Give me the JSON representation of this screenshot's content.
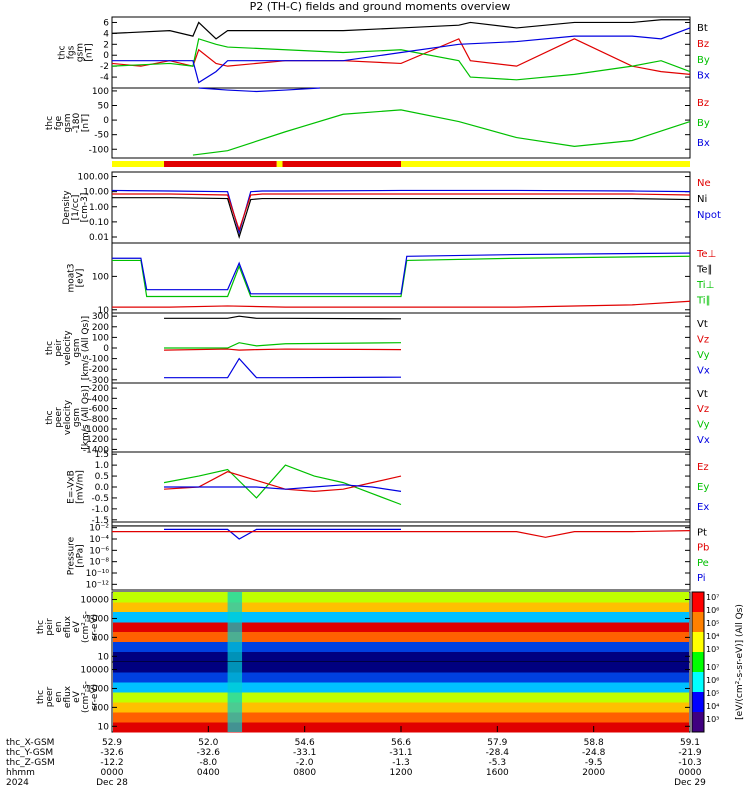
{
  "title": "P2 (TH-C) fields and ground moments overview",
  "colors": {
    "black": "#000000",
    "red": "#e00000",
    "green": "#00c000",
    "blue": "#0000e0",
    "yellow": "#ffff00",
    "barred": "#e00000"
  },
  "chart_data": [
    {
      "id": "fgs",
      "type": "line",
      "ylabel_lines": [
        "thc",
        "fgs",
        "gsm",
        "[nT]"
      ],
      "ylim": [
        -6,
        7
      ],
      "yticks": [
        {
          "v": 6,
          "l": "6"
        },
        {
          "v": 4,
          "l": "4"
        },
        {
          "v": 2,
          "l": "2"
        },
        {
          "v": 0,
          "l": "0"
        },
        {
          "v": -2,
          "l": "-2"
        },
        {
          "v": -4,
          "l": "-4"
        }
      ],
      "legend": [
        {
          "t": "Bt",
          "c": "black"
        },
        {
          "t": "Bz",
          "c": "red"
        },
        {
          "t": "By",
          "c": "green"
        },
        {
          "t": "Bx",
          "c": "blue"
        }
      ],
      "series": [
        {
          "name": "Bt",
          "color": "black",
          "x": [
            0,
            0.1,
            0.14,
            0.15,
            0.18,
            0.2,
            0.3,
            0.4,
            0.5,
            0.6,
            0.62,
            0.7,
            0.8,
            0.9,
            0.95,
            1
          ],
          "y": [
            4,
            4.5,
            3.5,
            6,
            3,
            4.5,
            4.5,
            4.5,
            5,
            5.5,
            6,
            5,
            6,
            6,
            6.5,
            6.5
          ]
        },
        {
          "name": "Bz",
          "color": "red",
          "x": [
            0,
            0.05,
            0.1,
            0.14,
            0.15,
            0.18,
            0.2,
            0.3,
            0.4,
            0.5,
            0.6,
            0.62,
            0.7,
            0.8,
            0.9,
            0.95,
            1
          ],
          "y": [
            -1.5,
            -2,
            -1,
            -2,
            1,
            -1.5,
            -2,
            -1,
            -1,
            -1.5,
            3,
            -1,
            -2,
            3,
            -2,
            -3,
            -3.5
          ]
        },
        {
          "name": "By",
          "color": "green",
          "x": [
            0,
            0.1,
            0.14,
            0.15,
            0.18,
            0.2,
            0.3,
            0.4,
            0.5,
            0.6,
            0.62,
            0.7,
            0.8,
            0.9,
            0.95,
            1
          ],
          "y": [
            -2,
            -1.5,
            -2,
            3,
            2,
            1.5,
            1,
            0.5,
            1,
            -1,
            -4,
            -4.5,
            -3.5,
            -2,
            -1,
            -3
          ]
        },
        {
          "name": "Bx",
          "color": "blue",
          "x": [
            0,
            0.1,
            0.14,
            0.15,
            0.18,
            0.2,
            0.3,
            0.4,
            0.5,
            0.6,
            0.7,
            0.8,
            0.9,
            0.95,
            1
          ],
          "y": [
            -1,
            -1,
            -1,
            -5,
            -3,
            -1,
            -1,
            -1,
            0.5,
            2,
            2.5,
            3.5,
            3.5,
            3,
            5
          ]
        }
      ]
    },
    {
      "id": "fge",
      "type": "line",
      "ylabel_lines": [
        "thc",
        "fge",
        "gsm",
        "-180",
        "[nT]"
      ],
      "ylim": [
        -130,
        110
      ],
      "yticks": [
        {
          "v": 100,
          "l": "100"
        },
        {
          "v": 50,
          "l": "50"
        },
        {
          "v": 0,
          "l": "0"
        },
        {
          "v": -50,
          "l": "-50"
        },
        {
          "v": -100,
          "l": "-100"
        }
      ],
      "legend": [
        {
          "t": "Bz",
          "c": "red"
        },
        {
          "t": "By",
          "c": "green"
        },
        {
          "t": "Bx",
          "c": "blue"
        }
      ],
      "series": [
        {
          "name": "By",
          "color": "green",
          "x": [
            0.14,
            0.2,
            0.3,
            0.4,
            0.5,
            0.6,
            0.7,
            0.8,
            0.9,
            1
          ],
          "y": [
            -120,
            -105,
            -40,
            20,
            35,
            -5,
            -60,
            -90,
            -70,
            -5
          ]
        },
        {
          "name": "Bx",
          "color": "blue",
          "x": [
            0.15,
            0.2,
            0.25,
            0.3,
            0.36
          ],
          "y": [
            110,
            103,
            98,
            103,
            110
          ]
        }
      ]
    },
    {
      "id": "mode",
      "type": "bar",
      "segments": [
        {
          "x0": 0,
          "x1": 0.09,
          "c": "yellow"
        },
        {
          "x0": 0.09,
          "x1": 0.285,
          "c": "barred"
        },
        {
          "x0": 0.285,
          "x1": 0.295,
          "c": "yellow"
        },
        {
          "x0": 0.295,
          "x1": 0.5,
          "c": "barred"
        },
        {
          "x0": 0.5,
          "x1": 1,
          "c": "yellow"
        }
      ]
    },
    {
      "id": "density",
      "type": "line",
      "log": true,
      "ylabel_lines": [
        "Density",
        "[1/cc]",
        "[cm-3]"
      ],
      "ylim": [
        0.004,
        200
      ],
      "yticks": [
        {
          "v": 100,
          "l": "100.00"
        },
        {
          "v": 10,
          "l": "10.00"
        },
        {
          "v": 1,
          "l": "1.00"
        },
        {
          "v": 0.1,
          "l": "0.10"
        },
        {
          "v": 0.01,
          "l": "0.01"
        }
      ],
      "legend": [
        {
          "t": "Ne",
          "c": "red"
        },
        {
          "t": "Ni",
          "c": "black"
        },
        {
          "t": "Npot",
          "c": "blue"
        },
        {
          "t": "",
          "c": "black"
        }
      ],
      "series": [
        {
          "name": "Npot",
          "color": "blue",
          "x": [
            0,
            0.1,
            0.2,
            0.22,
            0.24,
            0.26,
            0.3,
            0.5,
            0.7,
            0.9,
            1
          ],
          "y": [
            12,
            11,
            10,
            0.02,
            10,
            11,
            11,
            12,
            12,
            11,
            10
          ]
        },
        {
          "name": "Ne",
          "color": "red",
          "x": [
            0,
            0.1,
            0.2,
            0.22,
            0.24,
            0.26,
            0.3,
            0.5,
            0.7,
            0.9,
            1
          ],
          "y": [
            7,
            7,
            6,
            0.03,
            6,
            7,
            7,
            7,
            7,
            7,
            6
          ]
        },
        {
          "name": "Ni",
          "color": "black",
          "x": [
            0,
            0.1,
            0.2,
            0.22,
            0.24,
            0.26,
            0.3,
            0.5,
            0.7,
            0.9,
            1
          ],
          "y": [
            4,
            4,
            3.5,
            0.01,
            3,
            3.5,
            3.5,
            3.5,
            3.5,
            3.5,
            3
          ]
        }
      ]
    },
    {
      "id": "temp",
      "type": "line",
      "log": true,
      "ylabel_lines": [
        "moat3",
        "[eV]"
      ],
      "ylim": [
        8,
        1000
      ],
      "yticks": [
        {
          "v": 100,
          "l": "100"
        },
        {
          "v": 10,
          "l": "10"
        }
      ],
      "legend": [
        {
          "t": "Te⊥",
          "c": "red"
        },
        {
          "t": "Te∥",
          "c": "black"
        },
        {
          "t": "Ti⊥",
          "c": "green"
        },
        {
          "t": "Ti∥",
          "c": "green"
        }
      ],
      "series": [
        {
          "name": "Ti∥",
          "color": "green",
          "x": [
            0,
            0.05,
            0.06,
            0.2,
            0.22,
            0.24,
            0.3,
            0.5,
            0.51,
            0.7,
            1
          ],
          "y": [
            300,
            300,
            25,
            25,
            200,
            25,
            25,
            25,
            300,
            350,
            400
          ]
        },
        {
          "name": "Ti⊥",
          "color": "blue",
          "x": [
            0,
            0.05,
            0.06,
            0.2,
            0.22,
            0.24,
            0.3,
            0.5,
            0.51,
            0.7,
            1
          ],
          "y": [
            350,
            350,
            40,
            40,
            250,
            30,
            30,
            30,
            400,
            450,
            500
          ]
        },
        {
          "name": "Te⊥",
          "color": "red",
          "x": [
            0,
            0.1,
            0.2,
            0.3,
            0.5,
            0.7,
            0.9,
            1
          ],
          "y": [
            12,
            12,
            13,
            12,
            12,
            12,
            14,
            18
          ]
        }
      ]
    },
    {
      "id": "vel1",
      "type": "line",
      "ylabel_lines": [
        "thc",
        "peir",
        "velocity",
        "gsm",
        "[km/s (All Qs)]"
      ],
      "ylim": [
        -330,
        330
      ],
      "yticks": [
        {
          "v": 300,
          "l": "300"
        },
        {
          "v": 200,
          "l": "200"
        },
        {
          "v": 100,
          "l": "100"
        },
        {
          "v": 0,
          "l": "0"
        },
        {
          "v": -100,
          "l": "-100"
        },
        {
          "v": -200,
          "l": "-200"
        },
        {
          "v": -300,
          "l": "-300"
        }
      ],
      "legend": [
        {
          "t": "Vt",
          "c": "black"
        },
        {
          "t": "Vz",
          "c": "red"
        },
        {
          "t": "Vy",
          "c": "green"
        },
        {
          "t": "Vx",
          "c": "blue"
        }
      ],
      "series": [
        {
          "name": "Vt",
          "color": "black",
          "x": [
            0.09,
            0.2,
            0.22,
            0.25,
            0.3,
            0.5
          ],
          "y": [
            280,
            280,
            300,
            280,
            280,
            275
          ]
        },
        {
          "name": "Vx",
          "color": "blue",
          "x": [
            0.09,
            0.2,
            0.22,
            0.25,
            0.3,
            0.5
          ],
          "y": [
            -280,
            -280,
            -100,
            -280,
            -280,
            -275
          ]
        },
        {
          "name": "Vy",
          "color": "green",
          "x": [
            0.09,
            0.2,
            0.22,
            0.25,
            0.3,
            0.5
          ],
          "y": [
            0,
            0,
            50,
            20,
            40,
            50
          ]
        },
        {
          "name": "Vz",
          "color": "red",
          "x": [
            0.09,
            0.2,
            0.22,
            0.25,
            0.3,
            0.5
          ],
          "y": [
            -20,
            -10,
            -20,
            -15,
            -10,
            -15
          ]
        }
      ]
    },
    {
      "id": "vel2",
      "type": "line",
      "ylabel_lines": [
        "thc",
        "peer",
        "velocity",
        "gsm",
        "[km/s (All Qs)]"
      ],
      "ylim": [
        -1450,
        -100
      ],
      "yticks": [
        {
          "v": -200,
          "l": "-200"
        },
        {
          "v": -400,
          "l": "-400"
        },
        {
          "v": -600,
          "l": "-600"
        },
        {
          "v": -800,
          "l": "-800"
        },
        {
          "v": -1000,
          "l": "-1000"
        },
        {
          "v": -1200,
          "l": "-1200"
        },
        {
          "v": -1400,
          "l": "-1400"
        }
      ],
      "legend": [
        {
          "t": "Vt",
          "c": "black"
        },
        {
          "t": "Vz",
          "c": "red"
        },
        {
          "t": "Vy",
          "c": "green"
        },
        {
          "t": "Vx",
          "c": "blue"
        }
      ],
      "series": []
    },
    {
      "id": "efield",
      "type": "line",
      "ylabel_lines": [
        "E=-VxB",
        "[mV/m]"
      ],
      "ylim": [
        -1.6,
        1.6
      ],
      "yticks": [
        {
          "v": 1.5,
          "l": "1.5"
        },
        {
          "v": 1.0,
          "l": "1.0"
        },
        {
          "v": 0.5,
          "l": "0.5"
        },
        {
          "v": 0,
          "l": "0.0"
        },
        {
          "v": -0.5,
          "l": "-0.5"
        },
        {
          "v": -1.0,
          "l": "-1.0"
        },
        {
          "v": -1.5,
          "l": "-1.5"
        }
      ],
      "legend": [
        {
          "t": "Ez",
          "c": "red"
        },
        {
          "t": "Ey",
          "c": "green"
        },
        {
          "t": "Ex",
          "c": "blue"
        }
      ],
      "series": [
        {
          "name": "Ey",
          "color": "green",
          "x": [
            0.09,
            0.15,
            0.2,
            0.25,
            0.3,
            0.35,
            0.4,
            0.45,
            0.5
          ],
          "y": [
            0.2,
            0.5,
            0.8,
            -0.5,
            1,
            0.5,
            0.2,
            -0.3,
            -0.8
          ]
        },
        {
          "name": "Ez",
          "color": "red",
          "x": [
            0.09,
            0.15,
            0.2,
            0.25,
            0.3,
            0.35,
            0.4,
            0.45,
            0.5
          ],
          "y": [
            -0.1,
            0,
            0.7,
            0.3,
            -0.1,
            -0.2,
            -0.1,
            0.2,
            0.5
          ]
        },
        {
          "name": "Ex",
          "color": "blue",
          "x": [
            0.09,
            0.15,
            0.2,
            0.25,
            0.3,
            0.35,
            0.4,
            0.45,
            0.5
          ],
          "y": [
            0,
            0,
            0,
            0,
            -0.1,
            0,
            0.1,
            0,
            -0.2
          ]
        }
      ]
    },
    {
      "id": "pressure",
      "type": "line",
      "log": true,
      "ylabel_lines": [
        "Pressure",
        "[nPa]"
      ],
      "ylim": [
        1e-13,
        0.1
      ],
      "yticks": [
        {
          "v": 0.01,
          "l": "10⁻²"
        },
        {
          "v": 0.0001,
          "l": "10⁻⁴"
        },
        {
          "v": 1e-06,
          "l": "10⁻⁶"
        },
        {
          "v": 1e-08,
          "l": "10⁻⁸"
        },
        {
          "v": 1e-10,
          "l": "10⁻¹⁰"
        },
        {
          "v": 1e-12,
          "l": "10⁻¹²"
        }
      ],
      "legend": [
        {
          "t": "Pt",
          "c": "black"
        },
        {
          "t": "Pb",
          "c": "red"
        },
        {
          "t": "Pe",
          "c": "green"
        },
        {
          "t": "Pi",
          "c": "blue"
        }
      ],
      "series": [
        {
          "name": "Pt",
          "color": "black",
          "x": [
            0,
            0.09,
            0.2,
            0.5,
            1
          ],
          "y": [
            0.02,
            0.02,
            0.02,
            0.02,
            0.02
          ]
        },
        {
          "name": "Pi",
          "color": "blue",
          "x": [
            0.09,
            0.2,
            0.22,
            0.25,
            0.3,
            0.5
          ],
          "y": [
            0.005,
            0.005,
            0.0001,
            0.005,
            0.005,
            0.005
          ]
        },
        {
          "name": "Pb",
          "color": "red",
          "x": [
            0,
            0.2,
            0.3,
            0.7,
            0.75,
            0.8,
            0.9,
            1
          ],
          "y": [
            0.002,
            0.002,
            0.002,
            0.002,
            0.0002,
            0.002,
            0.002,
            0.003
          ]
        }
      ]
    },
    {
      "id": "peir_flux",
      "type": "heatmap",
      "ylabel_lines": [
        "thc",
        "peir",
        "en",
        "eflux",
        "eV",
        "(cm²-s-",
        "sr-eV)"
      ],
      "yticks": [
        {
          "v": 10000,
          "l": "10000"
        },
        {
          "v": 1000,
          "l": "1000"
        },
        {
          "v": 100,
          "l": "100"
        },
        {
          "v": 10,
          "l": "10"
        }
      ]
    },
    {
      "id": "peer_flux",
      "type": "heatmap",
      "ylabel_lines": [
        "thc",
        "peer",
        "en",
        "eflux",
        "eV",
        "(cm²-s-",
        "sr-eV)"
      ],
      "yticks": [
        {
          "v": 10000,
          "l": "10000"
        },
        {
          "v": 1000,
          "l": "1000"
        },
        {
          "v": 100,
          "l": "100"
        },
        {
          "v": 10,
          "l": "10"
        }
      ]
    }
  ],
  "colorbar": {
    "label": "[eV/(cm²-s-sr-eV)] (All Qs)",
    "ticks": [
      "10⁷",
      "10⁶",
      "10⁵",
      "10⁴",
      "10³"
    ]
  },
  "xaxis": {
    "rows": [
      {
        "label": "thc_X-GSM",
        "vals": [
          "52.9",
          "52.0",
          "54.6",
          "56.6",
          "57.9",
          "58.8",
          "59.1"
        ]
      },
      {
        "label": "thc_Y-GSM",
        "vals": [
          "-32.6",
          "-32.6",
          "-33.1",
          "-31.1",
          "-28.4",
          "-24.8",
          "-21.9"
        ]
      },
      {
        "label": "thc_Z-GSM",
        "vals": [
          "-12.2",
          "-8.0",
          "-2.0",
          "-1.3",
          "-5.3",
          "-9.5",
          "-10.3"
        ]
      },
      {
        "label": "hhmm",
        "vals": [
          "0000",
          "0400",
          "0800",
          "1200",
          "1600",
          "2000",
          "0000"
        ]
      }
    ],
    "year": "2024",
    "start_date": "Dec 28",
    "end_date": "Dec 29"
  }
}
